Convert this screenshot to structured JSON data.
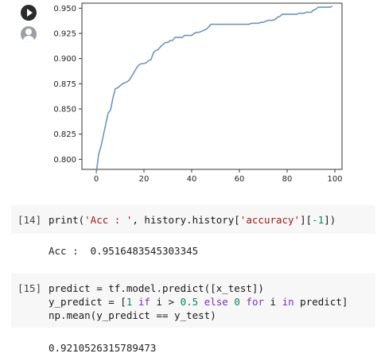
{
  "gutter": {
    "run_icon": "play-circle-icon",
    "user_icon": "user-avatar-icon"
  },
  "chart_data": {
    "type": "line",
    "xlim": [
      0,
      100
    ],
    "ylim": [
      0.79,
      0.955
    ],
    "x_ticks": [
      "0",
      "20",
      "40",
      "60",
      "80",
      "100"
    ],
    "y_ticks": [
      "0.800",
      "0.825",
      "0.850",
      "0.875",
      "0.900",
      "0.925",
      "0.950"
    ],
    "grid": false,
    "line_color": "#6a96c2",
    "series": [
      {
        "x": [
          0,
          1,
          2,
          3,
          4,
          5,
          6,
          7,
          8,
          9,
          10,
          11,
          12,
          13,
          14,
          15,
          16,
          17,
          18,
          19,
          20,
          21,
          22,
          23,
          24,
          25,
          26,
          27,
          28,
          29,
          30,
          31,
          32,
          33,
          34,
          35,
          36,
          37,
          38,
          39,
          40,
          41,
          42,
          43,
          44,
          45,
          46,
          47,
          48,
          49,
          50,
          51,
          52,
          53,
          54,
          55,
          56,
          57,
          58,
          59,
          60,
          61,
          62,
          63,
          64,
          65,
          66,
          67,
          68,
          69,
          70,
          71,
          72,
          73,
          74,
          75,
          76,
          77,
          78,
          79,
          80,
          81,
          82,
          83,
          84,
          85,
          86,
          87,
          88,
          89,
          90,
          91,
          92,
          93,
          94,
          95,
          96,
          97,
          98,
          99
        ],
        "y": [
          0.786,
          0.805,
          0.813,
          0.824,
          0.835,
          0.846,
          0.849,
          0.861,
          0.87,
          0.871,
          0.873,
          0.875,
          0.876,
          0.877,
          0.879,
          0.883,
          0.887,
          0.891,
          0.894,
          0.895,
          0.895,
          0.896,
          0.898,
          0.899,
          0.906,
          0.908,
          0.909,
          0.912,
          0.914,
          0.916,
          0.916,
          0.918,
          0.918,
          0.921,
          0.921,
          0.921,
          0.921,
          0.923,
          0.923,
          0.923,
          0.923,
          0.925,
          0.926,
          0.926,
          0.927,
          0.928,
          0.929,
          0.931,
          0.934,
          0.934,
          0.934,
          0.934,
          0.934,
          0.934,
          0.934,
          0.934,
          0.934,
          0.934,
          0.934,
          0.934,
          0.934,
          0.934,
          0.934,
          0.934,
          0.934,
          0.935,
          0.935,
          0.935,
          0.935,
          0.936,
          0.936,
          0.937,
          0.938,
          0.938,
          0.938,
          0.939,
          0.941,
          0.942,
          0.944,
          0.944,
          0.944,
          0.944,
          0.944,
          0.944,
          0.944,
          0.945,
          0.945,
          0.945,
          0.946,
          0.946,
          0.946,
          0.948,
          0.949,
          0.951,
          0.951,
          0.951,
          0.951,
          0.951,
          0.951,
          0.952
        ]
      }
    ]
  },
  "cells": [
    {
      "prompt": "[14]",
      "code_lines": [
        [
          {
            "t": "print(",
            "c": ""
          },
          {
            "t": "'Acc : '",
            "c": "str"
          },
          {
            "t": ", history.history[",
            "c": ""
          },
          {
            "t": "'accuracy'",
            "c": "str"
          },
          {
            "t": "][",
            "c": ""
          },
          {
            "t": "-1",
            "c": "num"
          },
          {
            "t": "])",
            "c": ""
          }
        ]
      ],
      "output": "Acc :  0.9516483545303345"
    },
    {
      "prompt": "[15]",
      "code_lines": [
        [
          {
            "t": "predict = tf.model.predict([x_test])",
            "c": ""
          }
        ],
        [
          {
            "t": "y_predict = [",
            "c": ""
          },
          {
            "t": "1",
            "c": "num"
          },
          {
            "t": " ",
            "c": ""
          },
          {
            "t": "if",
            "c": "kw"
          },
          {
            "t": " i > ",
            "c": ""
          },
          {
            "t": "0.5",
            "c": "num"
          },
          {
            "t": " ",
            "c": ""
          },
          {
            "t": "else",
            "c": "kw"
          },
          {
            "t": " ",
            "c": ""
          },
          {
            "t": "0",
            "c": "num"
          },
          {
            "t": " ",
            "c": ""
          },
          {
            "t": "for",
            "c": "kw"
          },
          {
            "t": " i ",
            "c": ""
          },
          {
            "t": "in",
            "c": "kw"
          },
          {
            "t": " predict]",
            "c": ""
          }
        ],
        [
          {
            "t": "np.mean(y_predict == y_test)",
            "c": ""
          }
        ]
      ],
      "output": "0.9210526315789473"
    }
  ]
}
